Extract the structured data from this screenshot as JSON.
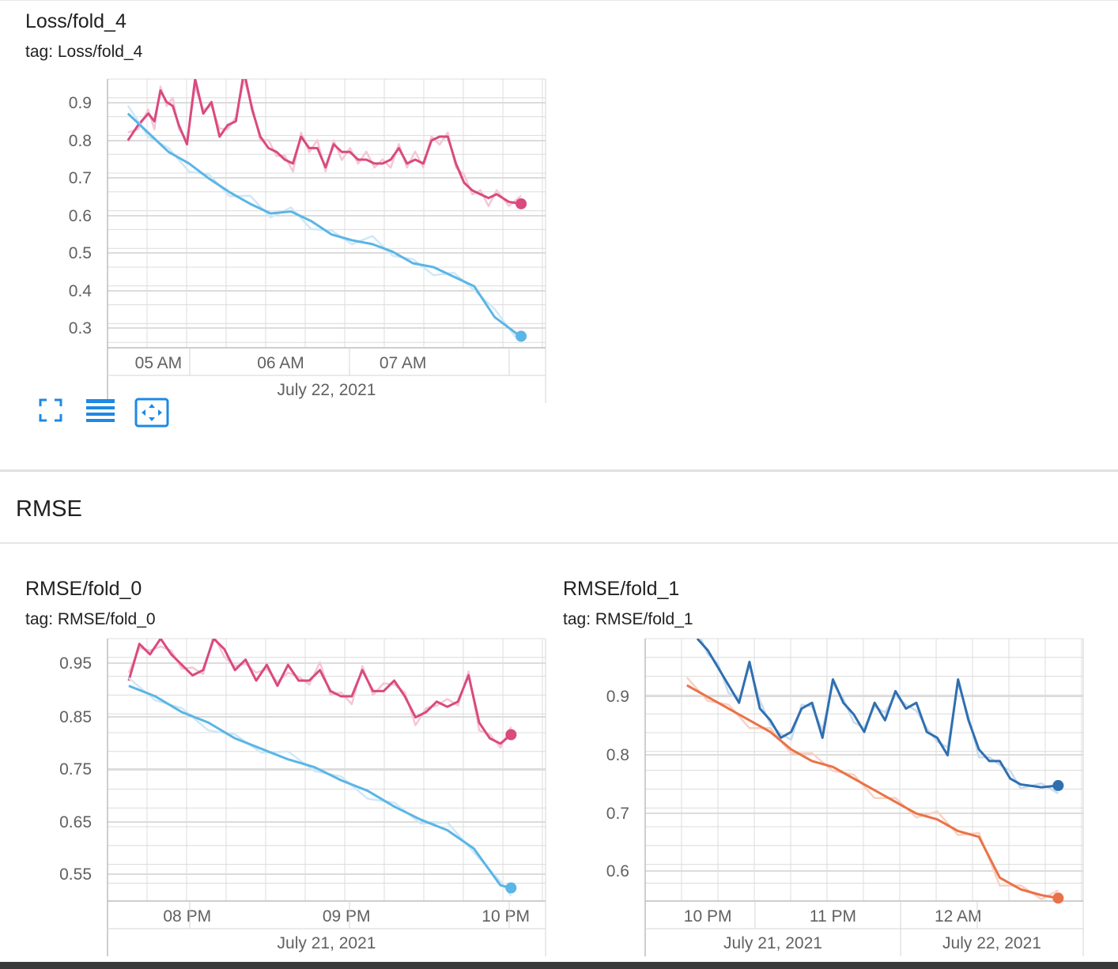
{
  "section": {
    "title": "RMSE"
  },
  "colors": {
    "pink": "#d94a7e",
    "pink_light": "#f4c7d6",
    "light_blue": "#5bb5e5",
    "light_blue_light": "#cfe8f6",
    "dark_blue": "#2f6fb0",
    "dark_blue_light": "#c9dcef",
    "orange": "#ea7248",
    "orange_light": "#f8d2c2",
    "grid": "#dcdcdc"
  },
  "toolbar": {
    "icons": [
      "fullscreen-icon",
      "data-table-icon",
      "fit-domain-icon"
    ]
  },
  "charts": [
    {
      "title": "Loss/fold_4",
      "tag": "tag: Loss/fold_4",
      "x_ticks": [
        "05 AM",
        "06 AM",
        "07 AM"
      ],
      "date_labels": [
        "July 22, 2021"
      ]
    },
    {
      "title": "RMSE/fold_0",
      "tag": "tag: RMSE/fold_0",
      "x_ticks": [
        "08 PM",
        "09 PM",
        "10 PM"
      ],
      "date_labels": [
        "July 21, 2021"
      ]
    },
    {
      "title": "RMSE/fold_1",
      "tag": "tag: RMSE/fold_1",
      "x_ticks": [
        "10 PM",
        "11 PM",
        "12 AM"
      ],
      "date_labels": [
        "July 21, 2021",
        "July 22, 2021"
      ]
    }
  ],
  "chart_data": [
    {
      "type": "line",
      "title": "Loss/fold_4",
      "xlabel": "",
      "ylabel": "",
      "y_ticks": [
        "0.9",
        "0.8",
        "0.7",
        "0.6",
        "0.5",
        "0.4",
        "0.3"
      ],
      "x_ticks": [
        "05 AM",
        "06 AM",
        "07 AM"
      ],
      "xlim": [
        "2021-07-22 04:35",
        "2021-07-22 08:10"
      ],
      "ylim": [
        0.25,
        0.95
      ],
      "grid": true,
      "series": [
        {
          "color": "#d94a7e",
          "light_color": "#f4c7d6",
          "x": [
            "2021-07-22 04:45",
            "2021-07-22 04:50",
            "2021-07-22 04:55",
            "2021-07-22 04:58",
            "2021-07-22 05:01",
            "2021-07-22 05:04",
            "2021-07-22 05:07",
            "2021-07-22 05:10",
            "2021-07-22 05:14",
            "2021-07-22 05:18",
            "2021-07-22 05:22",
            "2021-07-22 05:26",
            "2021-07-22 05:30",
            "2021-07-22 05:34",
            "2021-07-22 05:38",
            "2021-07-22 05:42",
            "2021-07-22 05:46",
            "2021-07-22 05:50",
            "2021-07-22 05:54",
            "2021-07-22 05:58",
            "2021-07-22 06:02",
            "2021-07-22 06:06",
            "2021-07-22 06:10",
            "2021-07-22 06:14",
            "2021-07-22 06:18",
            "2021-07-22 06:22",
            "2021-07-22 06:26",
            "2021-07-22 06:30",
            "2021-07-22 06:34",
            "2021-07-22 06:38",
            "2021-07-22 06:42",
            "2021-07-22 06:46",
            "2021-07-22 06:50",
            "2021-07-22 06:54",
            "2021-07-22 06:58",
            "2021-07-22 07:02",
            "2021-07-22 07:06",
            "2021-07-22 07:10",
            "2021-07-22 07:14",
            "2021-07-22 07:18",
            "2021-07-22 07:22",
            "2021-07-22 07:26",
            "2021-07-22 07:30",
            "2021-07-22 07:34",
            "2021-07-22 07:38",
            "2021-07-22 07:42",
            "2021-07-22 07:46",
            "2021-07-22 07:52",
            "2021-07-22 07:58"
          ],
          "values": [
            0.79,
            0.83,
            0.86,
            0.84,
            0.92,
            0.89,
            0.88,
            0.83,
            0.78,
            0.95,
            0.86,
            0.89,
            0.8,
            0.83,
            0.84,
            0.97,
            0.87,
            0.8,
            0.77,
            0.76,
            0.74,
            0.73,
            0.8,
            0.77,
            0.77,
            0.72,
            0.78,
            0.76,
            0.76,
            0.74,
            0.74,
            0.73,
            0.73,
            0.74,
            0.77,
            0.73,
            0.74,
            0.73,
            0.79,
            0.8,
            0.8,
            0.73,
            0.68,
            0.66,
            0.65,
            0.64,
            0.65,
            0.63,
            0.625
          ]
        },
        {
          "color": "#5bb5e5",
          "light_color": "#cfe8f6",
          "x": [
            "2021-07-22 04:45",
            "2021-07-22 04:55",
            "2021-07-22 05:05",
            "2021-07-22 05:15",
            "2021-07-22 05:25",
            "2021-07-22 05:35",
            "2021-07-22 05:45",
            "2021-07-22 05:55",
            "2021-07-22 06:05",
            "2021-07-22 06:15",
            "2021-07-22 06:25",
            "2021-07-22 06:35",
            "2021-07-22 06:45",
            "2021-07-22 06:55",
            "2021-07-22 07:05",
            "2021-07-22 07:15",
            "2021-07-22 07:25",
            "2021-07-22 07:35",
            "2021-07-22 07:45",
            "2021-07-22 07:55",
            "2021-07-22 07:58"
          ],
          "values": [
            0.86,
            0.81,
            0.76,
            0.73,
            0.69,
            0.655,
            0.625,
            0.6,
            0.605,
            0.58,
            0.545,
            0.53,
            0.52,
            0.5,
            0.47,
            0.46,
            0.435,
            0.41,
            0.33,
            0.29,
            0.28
          ]
        }
      ]
    },
    {
      "type": "line",
      "title": "RMSE/fold_0",
      "xlabel": "",
      "ylabel": "",
      "y_ticks": [
        "0.95",
        "0.85",
        "0.75",
        "0.65",
        "0.55"
      ],
      "x_ticks": [
        "08 PM",
        "09 PM",
        "10 PM"
      ],
      "xlim": [
        "2021-07-21 19:30",
        "2021-07-21 22:15"
      ],
      "ylim": [
        0.5,
        1.0
      ],
      "grid": true,
      "series": [
        {
          "color": "#d94a7e",
          "light_color": "#f4c7d6",
          "x": [
            "2021-07-21 19:38",
            "2021-07-21 19:42",
            "2021-07-21 19:46",
            "2021-07-21 19:50",
            "2021-07-21 19:54",
            "2021-07-21 19:58",
            "2021-07-21 20:02",
            "2021-07-21 20:06",
            "2021-07-21 20:10",
            "2021-07-21 20:14",
            "2021-07-21 20:18",
            "2021-07-21 20:22",
            "2021-07-21 20:26",
            "2021-07-21 20:30",
            "2021-07-21 20:34",
            "2021-07-21 20:38",
            "2021-07-21 20:42",
            "2021-07-21 20:46",
            "2021-07-21 20:50",
            "2021-07-21 20:54",
            "2021-07-21 20:58",
            "2021-07-21 21:02",
            "2021-07-21 21:06",
            "2021-07-21 21:10",
            "2021-07-21 21:14",
            "2021-07-21 21:18",
            "2021-07-21 21:22",
            "2021-07-21 21:26",
            "2021-07-21 21:30",
            "2021-07-21 21:34",
            "2021-07-21 21:38",
            "2021-07-21 21:42",
            "2021-07-21 21:46",
            "2021-07-21 21:50",
            "2021-07-21 21:54",
            "2021-07-21 21:58",
            "2021-07-21 22:02"
          ],
          "values": [
            0.92,
            0.99,
            0.97,
            1.0,
            0.97,
            0.95,
            0.93,
            0.94,
            1.0,
            0.98,
            0.94,
            0.96,
            0.92,
            0.95,
            0.91,
            0.95,
            0.92,
            0.92,
            0.94,
            0.9,
            0.89,
            0.89,
            0.94,
            0.9,
            0.9,
            0.92,
            0.89,
            0.85,
            0.86,
            0.88,
            0.87,
            0.88,
            0.93,
            0.84,
            0.81,
            0.8,
            0.817
          ]
        },
        {
          "color": "#5bb5e5",
          "light_color": "#cfe8f6",
          "x": [
            "2021-07-21 19:38",
            "2021-07-21 19:48",
            "2021-07-21 19:58",
            "2021-07-21 20:08",
            "2021-07-21 20:18",
            "2021-07-21 20:28",
            "2021-07-21 20:38",
            "2021-07-21 20:48",
            "2021-07-21 20:58",
            "2021-07-21 21:08",
            "2021-07-21 21:18",
            "2021-07-21 21:28",
            "2021-07-21 21:38",
            "2021-07-21 21:48",
            "2021-07-21 21:58",
            "2021-07-21 22:02"
          ],
          "values": [
            0.91,
            0.89,
            0.86,
            0.84,
            0.81,
            0.79,
            0.77,
            0.755,
            0.73,
            0.71,
            0.68,
            0.655,
            0.635,
            0.6,
            0.53,
            0.525
          ]
        }
      ]
    },
    {
      "type": "line",
      "title": "RMSE/fold_1",
      "xlabel": "",
      "ylabel": "",
      "y_ticks": [
        "0.9",
        "0.8",
        "0.7",
        "0.6"
      ],
      "x_ticks": [
        "10 PM",
        "11 PM",
        "12 AM"
      ],
      "xlim": [
        "2021-07-21 21:30",
        "2021-07-22 01:00"
      ],
      "ylim": [
        0.55,
        1.0
      ],
      "grid": true,
      "series": [
        {
          "color": "#2f6fb0",
          "light_color": "#c9dcef",
          "x": [
            "2021-07-21 21:55",
            "2021-07-21 22:00",
            "2021-07-21 22:05",
            "2021-07-21 22:10",
            "2021-07-21 22:15",
            "2021-07-21 22:20",
            "2021-07-21 22:25",
            "2021-07-21 22:30",
            "2021-07-21 22:35",
            "2021-07-21 22:40",
            "2021-07-21 22:45",
            "2021-07-21 22:50",
            "2021-07-21 22:55",
            "2021-07-21 23:00",
            "2021-07-21 23:05",
            "2021-07-21 23:10",
            "2021-07-21 23:15",
            "2021-07-21 23:20",
            "2021-07-21 23:25",
            "2021-07-21 23:30",
            "2021-07-21 23:35",
            "2021-07-21 23:40",
            "2021-07-21 23:45",
            "2021-07-21 23:50",
            "2021-07-21 23:55",
            "2021-07-22 00:00",
            "2021-07-22 00:05",
            "2021-07-22 00:10",
            "2021-07-22 00:15",
            "2021-07-22 00:20",
            "2021-07-22 00:25",
            "2021-07-22 00:30",
            "2021-07-22 00:40",
            "2021-07-22 00:48"
          ],
          "values": [
            1.0,
            0.98,
            0.95,
            0.92,
            0.89,
            0.96,
            0.88,
            0.86,
            0.83,
            0.84,
            0.88,
            0.89,
            0.83,
            0.93,
            0.89,
            0.87,
            0.84,
            0.89,
            0.86,
            0.91,
            0.88,
            0.89,
            0.84,
            0.83,
            0.8,
            0.93,
            0.86,
            0.81,
            0.79,
            0.79,
            0.76,
            0.75,
            0.745,
            0.748
          ]
        },
        {
          "color": "#ea7248",
          "light_color": "#f8d2c2",
          "x": [
            "2021-07-21 21:50",
            "2021-07-21 22:00",
            "2021-07-21 22:10",
            "2021-07-21 22:20",
            "2021-07-21 22:30",
            "2021-07-21 22:40",
            "2021-07-21 22:50",
            "2021-07-21 23:00",
            "2021-07-21 23:10",
            "2021-07-21 23:20",
            "2021-07-21 23:30",
            "2021-07-21 23:40",
            "2021-07-21 23:50",
            "2021-07-22 00:00",
            "2021-07-22 00:10",
            "2021-07-22 00:20",
            "2021-07-22 00:30",
            "2021-07-22 00:40",
            "2021-07-22 00:48"
          ],
          "values": [
            0.92,
            0.9,
            0.88,
            0.86,
            0.84,
            0.81,
            0.79,
            0.78,
            0.76,
            0.74,
            0.72,
            0.7,
            0.69,
            0.67,
            0.66,
            0.59,
            0.57,
            0.56,
            0.555
          ]
        }
      ]
    }
  ]
}
